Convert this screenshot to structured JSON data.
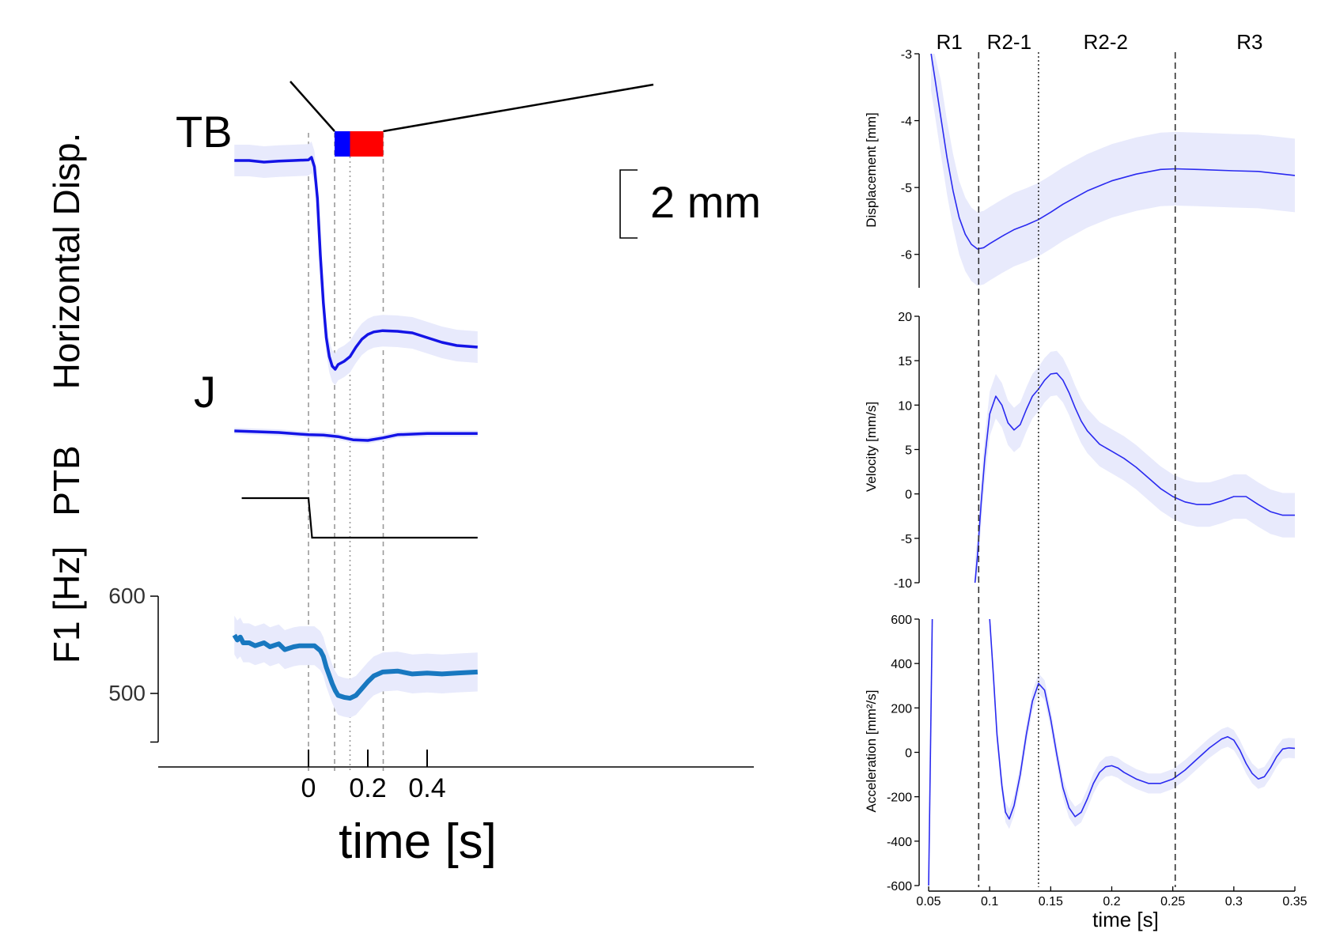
{
  "chart_data": [
    {
      "type": "line",
      "title": "",
      "xlabel": "time [s]",
      "xlim": [
        -0.25,
        0.57
      ],
      "x_ticks": [
        0,
        0.2,
        0.4
      ],
      "x_tick_labels": [
        "0",
        "0.2",
        "0.4"
      ],
      "grid": false,
      "event_lines_x": [
        0,
        0.088,
        0.14,
        0.252
      ],
      "phase_bar": {
        "segments": [
          {
            "x_start": 0.088,
            "x_end": 0.14,
            "color": "#0000ff"
          },
          {
            "x_start": 0.14,
            "x_end": 0.252,
            "color": "#ff0000"
          }
        ]
      },
      "scale_bar_label": "2 mm",
      "panels": [
        {
          "ylabel": "Horizontal Disp.",
          "unit": "mm",
          "series": [
            {
              "name": "TB",
              "color": "#1414e6",
              "x": [
                -0.25,
                -0.2,
                -0.15,
                -0.1,
                -0.05,
                0.0,
                0.01,
                0.02,
                0.03,
                0.04,
                0.05,
                0.06,
                0.07,
                0.08,
                0.09,
                0.1,
                0.12,
                0.14,
                0.16,
                0.18,
                0.2,
                0.22,
                0.25,
                0.3,
                0.35,
                0.4,
                0.45,
                0.5,
                0.57
              ],
              "y": [
                0,
                0,
                -0.05,
                -0.02,
                0,
                0.02,
                0.1,
                -0.2,
                -1.2,
                -3.0,
                -4.5,
                -5.6,
                -6.2,
                -6.5,
                -6.6,
                -6.45,
                -6.35,
                -6.2,
                -5.9,
                -5.65,
                -5.5,
                -5.42,
                -5.38,
                -5.4,
                -5.45,
                -5.6,
                -5.75,
                -5.85,
                -5.9
              ],
              "band": 0.5
            },
            {
              "name": "J",
              "color": "#1414e6",
              "x": [
                -0.25,
                -0.1,
                0.0,
                0.05,
                0.1,
                0.15,
                0.2,
                0.25,
                0.3,
                0.4,
                0.57
              ],
              "y": [
                0,
                -0.05,
                -0.12,
                -0.13,
                -0.18,
                -0.28,
                -0.3,
                -0.22,
                -0.12,
                -0.08,
                -0.08
              ],
              "band": 0.1
            }
          ]
        },
        {
          "ylabel": "PTB",
          "series": [
            {
              "name": "",
              "color": "#000000",
              "x": [
                -0.225,
                0.0,
                0.012,
                0.57
              ],
              "y": [
                1,
                1,
                0,
                0
              ]
            }
          ]
        },
        {
          "ylabel": "F1 [Hz]",
          "ylim": [
            450,
            600
          ],
          "y_ticks": [
            500,
            600
          ],
          "y_tick_labels": [
            "500",
            "600"
          ],
          "series": [
            {
              "name": "",
              "color": "#1878c0",
              "x": [
                -0.25,
                -0.24,
                -0.23,
                -0.22,
                -0.2,
                -0.18,
                -0.15,
                -0.13,
                -0.1,
                -0.08,
                -0.05,
                -0.03,
                0.0,
                0.02,
                0.04,
                0.05,
                0.06,
                0.08,
                0.09,
                0.1,
                0.12,
                0.14,
                0.16,
                0.18,
                0.2,
                0.22,
                0.25,
                0.3,
                0.35,
                0.4,
                0.45,
                0.5,
                0.57
              ],
              "y": [
                560,
                555,
                558,
                552,
                552,
                549,
                552,
                548,
                551,
                545,
                548,
                549,
                549,
                549,
                544,
                538,
                527,
                510,
                503,
                498,
                496,
                495,
                498,
                505,
                512,
                518,
                522,
                523,
                520,
                521,
                520,
                521,
                522
              ],
              "band": 20
            }
          ]
        }
      ]
    },
    {
      "type": "line",
      "xlabel": "time [s]",
      "xlim": [
        0.05,
        0.35
      ],
      "x_ticks": [
        0.05,
        0.1,
        0.15,
        0.2,
        0.25,
        0.3,
        0.35
      ],
      "x_tick_labels": [
        "0.05",
        "0.1",
        "0.15",
        "0.2",
        "0.25",
        "0.3",
        "0.35"
      ],
      "grid": false,
      "phase_labels": [
        {
          "label": "R1",
          "x": 0.067
        },
        {
          "label": "R2-1",
          "x": 0.116
        },
        {
          "label": "R2-2",
          "x": 0.195
        },
        {
          "label": "R3",
          "x": 0.313
        }
      ],
      "event_lines": [
        {
          "x": 0.091,
          "style": "dashed"
        },
        {
          "x": 0.14,
          "style": "dotted"
        },
        {
          "x": 0.252,
          "style": "dashed"
        }
      ],
      "panels": [
        {
          "ylabel": "Displacement [mm]",
          "ylim": [
            -6.5,
            -3
          ],
          "y_ticks": [
            -6,
            -5,
            -4,
            -3
          ],
          "y_tick_labels": [
            "-6",
            "-5",
            "-4",
            "-3"
          ],
          "series": [
            {
              "name": "",
              "color": "#2a2af0",
              "x": [
                0.052,
                0.055,
                0.06,
                0.065,
                0.07,
                0.075,
                0.08,
                0.085,
                0.09,
                0.095,
                0.1,
                0.11,
                0.12,
                0.13,
                0.14,
                0.15,
                0.16,
                0.18,
                0.2,
                0.22,
                0.24,
                0.252,
                0.27,
                0.3,
                0.32,
                0.35
              ],
              "y": [
                -3.0,
                -3.35,
                -3.95,
                -4.55,
                -5.05,
                -5.45,
                -5.7,
                -5.85,
                -5.92,
                -5.9,
                -5.84,
                -5.73,
                -5.63,
                -5.56,
                -5.48,
                -5.37,
                -5.25,
                -5.05,
                -4.9,
                -4.8,
                -4.73,
                -4.72,
                -4.73,
                -4.75,
                -4.76,
                -4.82
              ],
              "band": 0.55
            }
          ]
        },
        {
          "ylabel": "Velocity [mm/s]",
          "ylim": [
            -10,
            20
          ],
          "y_ticks": [
            -10,
            -5,
            0,
            5,
            10,
            15,
            20
          ],
          "y_tick_labels": [
            "-10",
            "-5",
            "0",
            "5",
            "10",
            "15",
            "20"
          ],
          "series": [
            {
              "name": "",
              "color": "#2a2af0",
              "x": [
                0.088,
                0.09,
                0.093,
                0.096,
                0.1,
                0.105,
                0.11,
                0.115,
                0.12,
                0.125,
                0.13,
                0.135,
                0.14,
                0.145,
                0.15,
                0.155,
                0.16,
                0.165,
                0.17,
                0.175,
                0.18,
                0.19,
                0.2,
                0.21,
                0.22,
                0.23,
                0.24,
                0.25,
                0.26,
                0.27,
                0.28,
                0.29,
                0.3,
                0.31,
                0.32,
                0.33,
                0.34,
                0.35
              ],
              "y": [
                -10,
                -7,
                -1,
                4,
                9,
                11,
                10,
                8,
                7.2,
                7.8,
                9.5,
                11,
                11.8,
                12.8,
                13.5,
                13.6,
                12.8,
                11.4,
                9.7,
                8.2,
                7.1,
                5.6,
                4.8,
                4.0,
                3.0,
                1.8,
                0.6,
                -0.3,
                -0.9,
                -1.2,
                -1.2,
                -0.8,
                -0.3,
                -0.3,
                -1.2,
                -2.0,
                -2.4,
                -2.4
              ],
              "band": 2.5
            }
          ]
        },
        {
          "ylabel": "Acceleration [mm²/s]",
          "ylim": [
            -600,
            600
          ],
          "y_ticks": [
            -600,
            -400,
            -200,
            0,
            200,
            400,
            600
          ],
          "y_tick_labels": [
            "-600",
            "-400",
            "-200",
            "0",
            "200",
            "400",
            "600"
          ],
          "series": [
            {
              "name": "",
              "color": "#2a2af0",
              "x": [
                0.05,
                0.053
              ],
              "y": [
                -600,
                600
              ]
            },
            {
              "name": "",
              "color": "#2a2af0",
              "x": [
                0.1,
                0.103,
                0.106,
                0.11,
                0.113,
                0.116,
                0.12,
                0.125,
                0.13,
                0.135,
                0.14,
                0.145,
                0.15,
                0.155,
                0.16,
                0.165,
                0.17,
                0.175,
                0.18,
                0.185,
                0.19,
                0.195,
                0.2,
                0.205,
                0.21,
                0.22,
                0.23,
                0.24,
                0.25,
                0.26,
                0.27,
                0.28,
                0.29,
                0.295,
                0.3,
                0.305,
                0.31,
                0.315,
                0.32,
                0.325,
                0.33,
                0.335,
                0.34,
                0.345,
                0.35
              ],
              "y": [
                600,
                350,
                80,
                -150,
                -270,
                -300,
                -240,
                -100,
                80,
                230,
                310,
                280,
                150,
                -10,
                -160,
                -250,
                -290,
                -270,
                -210,
                -140,
                -90,
                -65,
                -60,
                -70,
                -90,
                -120,
                -140,
                -140,
                -120,
                -80,
                -30,
                20,
                60,
                70,
                55,
                10,
                -50,
                -95,
                -120,
                -110,
                -70,
                -20,
                15,
                20,
                18
              ],
              "band": 45
            }
          ]
        }
      ]
    }
  ],
  "left": {
    "panel_texts": {
      "tb": "TB",
      "j": "J"
    }
  }
}
